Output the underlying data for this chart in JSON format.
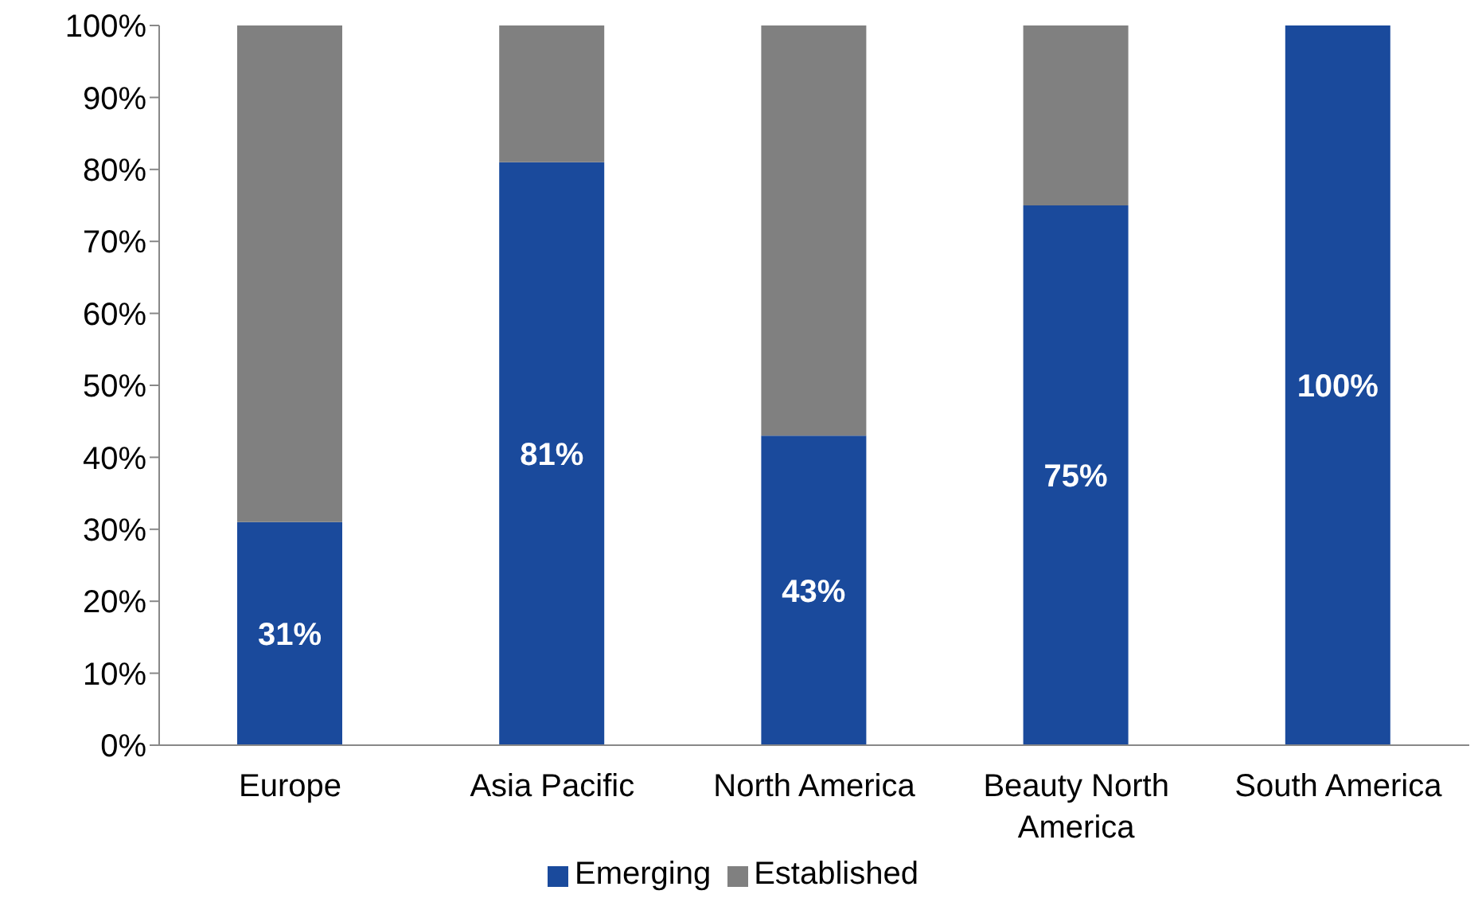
{
  "chart_data": {
    "type": "bar",
    "stacked": true,
    "categories": [
      "Europe",
      "Asia Pacific",
      "North America",
      "Beauty North America",
      "South America"
    ],
    "series": [
      {
        "name": "Emerging",
        "color": "#1a4a9c",
        "values": [
          31,
          81,
          43,
          75,
          100
        ],
        "value_labels": [
          "31%",
          "81%",
          "43%",
          "75%",
          "100%"
        ]
      },
      {
        "name": "Established",
        "color": "#808080",
        "values": [
          69,
          19,
          57,
          25,
          0
        ]
      }
    ],
    "ylim": [
      0,
      100
    ],
    "yticks": [
      {
        "value": 0,
        "label": "0%"
      },
      {
        "value": 10,
        "label": "10%"
      },
      {
        "value": 20,
        "label": "20%"
      },
      {
        "value": 30,
        "label": "30%"
      },
      {
        "value": 40,
        "label": "40%"
      },
      {
        "value": 50,
        "label": "50%"
      },
      {
        "value": 60,
        "label": "60%"
      },
      {
        "value": 70,
        "label": "70%"
      },
      {
        "value": 80,
        "label": "80%"
      },
      {
        "value": 90,
        "label": "90%"
      },
      {
        "value": 100,
        "label": "100%"
      }
    ],
    "grid": false,
    "legend": "bottom"
  }
}
